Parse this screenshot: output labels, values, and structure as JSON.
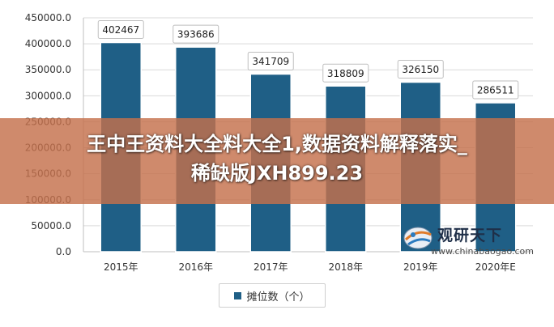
{
  "chart_data": {
    "type": "bar",
    "categories": [
      "2015年",
      "2016年",
      "2017年",
      "2018年",
      "2019年",
      "2020年E"
    ],
    "series": [
      {
        "name": "摊位数（个）",
        "values": [
          402467,
          393686,
          341709,
          318809,
          326150,
          286511
        ]
      }
    ],
    "data_labels": [
      "402467",
      "393686",
      "341709",
      "318809",
      "326150",
      "286511"
    ],
    "y_ticks": [
      "0.0",
      "50000.0",
      "100000.0",
      "150000.0",
      "200000.0",
      "250000.0",
      "300000.0",
      "350000.0",
      "400000.0",
      "450000.0"
    ],
    "ylim": [
      0,
      450000
    ],
    "grid": true,
    "legend_position": "bottom-center",
    "bar_color": "#1f5f86"
  },
  "overlay": {
    "line1": "王中王资料大全料大全1,数据资料解释落实_",
    "line2": "稀缺版JXH899.23"
  },
  "watermark": {
    "title": "观研天下",
    "url": "www.chinabaogao.com"
  }
}
